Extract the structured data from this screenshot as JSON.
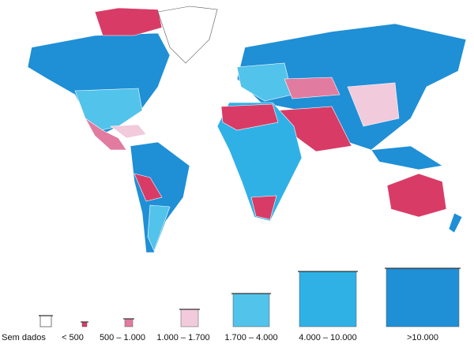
{
  "legend": {
    "items": [
      {
        "label": "Sem dados",
        "color": "#ffffff"
      },
      {
        "label": "< 500",
        "color": "#d83c66"
      },
      {
        "label": "500 – 1.000",
        "color": "#e27ba0"
      },
      {
        "label": "1.000 – 1.700",
        "color": "#f1cadb"
      },
      {
        "label": "1.700 – 4.000",
        "color": "#52c3ea"
      },
      {
        "label": "4.000 – 10.000",
        "color": "#2fb1e6"
      },
      {
        "label": ">10.000",
        "color": "#1f8fd6"
      }
    ]
  }
}
